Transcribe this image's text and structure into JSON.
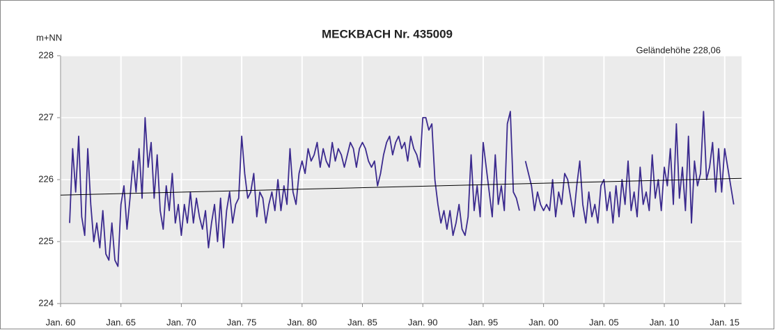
{
  "chart_data": {
    "type": "line",
    "title": "MECKBACH  Nr. 435009",
    "y_label": "m+NN",
    "annotation": "Geländehöhe 228,06",
    "annotation_color": "#3a9a3a",
    "background": "#ebebeb",
    "grid": true,
    "xlim": [
      1960,
      2016.4
    ],
    "ylim": [
      224,
      228
    ],
    "yticks": [
      224,
      225,
      226,
      227,
      228
    ],
    "xticks": [
      {
        "value": 1960,
        "label": "Jan. 60"
      },
      {
        "value": 1965,
        "label": "Jan. 65"
      },
      {
        "value": 1970,
        "label": "Jan. 70"
      },
      {
        "value": 1975,
        "label": "Jan. 75"
      },
      {
        "value": 1980,
        "label": "Jan. 80"
      },
      {
        "value": 1985,
        "label": "Jan. 85"
      },
      {
        "value": 1990,
        "label": "Jan. 90"
      },
      {
        "value": 1995,
        "label": "Jan. 95"
      },
      {
        "value": 2000,
        "label": "Jan. 00"
      },
      {
        "value": 2005,
        "label": "Jan. 05"
      },
      {
        "value": 2010,
        "label": "Jan. 10"
      },
      {
        "value": 2015,
        "label": "Jan. 15"
      }
    ],
    "x": [
      1960.75,
      1961,
      1961.25,
      1961.5,
      1961.75,
      1962,
      1962.25,
      1962.5,
      1962.75,
      1963,
      1963.25,
      1963.5,
      1963.75,
      1964,
      1964.25,
      1964.5,
      1964.75,
      1965,
      1965.25,
      1965.5,
      1965.75,
      1966,
      1966.25,
      1966.5,
      1966.75,
      1967,
      1967.25,
      1967.5,
      1967.75,
      1968,
      1968.25,
      1968.5,
      1968.75,
      1969,
      1969.25,
      1969.5,
      1969.75,
      1970,
      1970.25,
      1970.5,
      1970.75,
      1971,
      1971.25,
      1971.5,
      1971.75,
      1972,
      1972.25,
      1972.5,
      1972.75,
      1973,
      1973.25,
      1973.5,
      1973.75,
      1974,
      1974.25,
      1974.5,
      1974.75,
      1975,
      1975.25,
      1975.5,
      1975.75,
      1976,
      1976.25,
      1976.5,
      1976.75,
      1977,
      1977.25,
      1977.5,
      1977.75,
      1978,
      1978.25,
      1978.5,
      1978.75,
      1979,
      1979.25,
      1979.5,
      1979.75,
      1980,
      1980.25,
      1980.5,
      1980.75,
      1981,
      1981.25,
      1981.5,
      1981.75,
      1982,
      1982.25,
      1982.5,
      1982.75,
      1983,
      1983.25,
      1983.5,
      1983.75,
      1984,
      1984.25,
      1984.5,
      1984.75,
      1985,
      1985.25,
      1985.5,
      1985.75,
      1986,
      1986.25,
      1986.5,
      1986.75,
      1987,
      1987.25,
      1987.5,
      1987.75,
      1988,
      1988.25,
      1988.5,
      1988.75,
      1989,
      1989.25,
      1989.5,
      1989.75,
      1990,
      1990.25,
      1990.5,
      1990.75,
      1991,
      1991.25,
      1991.5,
      1991.75,
      1992,
      1992.25,
      1992.5,
      1992.75,
      1993,
      1993.25,
      1993.5,
      1993.75,
      1994,
      1994.25,
      1994.5,
      1994.75,
      1995,
      1995.25,
      1995.5,
      1995.75,
      1996,
      1996.25,
      1996.5,
      1996.75,
      1997,
      1997.25,
      1997.5,
      1997.75,
      1998,
      1998.25,
      1998.5,
      1998.75,
      1999,
      1999.25,
      1999.5,
      1999.75,
      2000,
      2000.25,
      2000.5,
      2000.75,
      2001,
      2001.25,
      2001.5,
      2001.75,
      2002,
      2002.25,
      2002.5,
      2002.75,
      2003,
      2003.25,
      2003.5,
      2003.75,
      2004,
      2004.25,
      2004.5,
      2004.75,
      2005,
      2005.25,
      2005.5,
      2005.75,
      2006,
      2006.25,
      2006.5,
      2006.75,
      2007,
      2007.25,
      2007.5,
      2007.75,
      2008,
      2008.25,
      2008.5,
      2008.75,
      2009,
      2009.25,
      2009.5,
      2009.75,
      2010,
      2010.25,
      2010.5,
      2010.75,
      2011,
      2011.25,
      2011.5,
      2011.75,
      2012,
      2012.25,
      2012.5,
      2012.75,
      2013,
      2013.25,
      2013.5,
      2013.75,
      2014,
      2014.25,
      2014.5,
      2014.75,
      2015,
      2015.25,
      2015.5,
      2015.75
    ],
    "series": [
      {
        "color": "#3b2a8e",
        "values": [
          225.3,
          226.5,
          225.8,
          226.7,
          225.4,
          225.1,
          226.5,
          225.6,
          225.0,
          225.3,
          224.9,
          225.5,
          224.8,
          224.7,
          225.3,
          224.7,
          224.6,
          225.6,
          225.9,
          225.2,
          225.7,
          226.3,
          225.8,
          226.5,
          225.7,
          227.0,
          226.2,
          226.6,
          225.7,
          226.4,
          225.5,
          225.2,
          225.9,
          225.5,
          226.1,
          225.3,
          225.6,
          225.1,
          225.6,
          225.3,
          225.8,
          225.3,
          225.7,
          225.4,
          225.2,
          225.5,
          224.9,
          225.3,
          225.6,
          225.0,
          225.7,
          224.9,
          225.5,
          225.8,
          225.3,
          225.6,
          225.7,
          226.7,
          226.1,
          225.7,
          225.8,
          226.1,
          225.4,
          225.8,
          225.7,
          225.3,
          225.6,
          225.8,
          225.5,
          226.0,
          225.5,
          225.9,
          225.6,
          226.5,
          225.8,
          225.6,
          226.1,
          226.3,
          226.1,
          226.5,
          226.3,
          226.4,
          226.6,
          226.2,
          226.5,
          226.3,
          226.2,
          226.6,
          226.3,
          226.5,
          226.4,
          226.2,
          226.4,
          226.6,
          226.5,
          226.2,
          226.5,
          226.6,
          226.5,
          226.3,
          226.2,
          226.3,
          225.9,
          226.1,
          226.4,
          226.6,
          226.7,
          226.4,
          226.6,
          226.7,
          226.5,
          226.6,
          226.3,
          226.7,
          226.5,
          226.4,
          226.2,
          227.0,
          227.0,
          226.8,
          226.9,
          226.0,
          225.6,
          225.3,
          225.5,
          225.2,
          225.5,
          225.1,
          225.3,
          225.6,
          225.2,
          225.1,
          225.4,
          226.4,
          225.5,
          225.9,
          225.4,
          226.6,
          226.2,
          225.8,
          225.4,
          226.4,
          225.6,
          225.9,
          225.5,
          226.9,
          227.1,
          225.8,
          225.7,
          225.5,
          null,
          226.3,
          226.1,
          225.9,
          225.5,
          225.8,
          225.6,
          225.5,
          225.6,
          225.5,
          226.0,
          225.4,
          225.8,
          225.6,
          226.1,
          226.0,
          225.7,
          225.4,
          225.9,
          226.3,
          225.6,
          225.3,
          225.8,
          225.4,
          225.6,
          225.3,
          225.9,
          226.0,
          225.5,
          225.8,
          225.3,
          225.9,
          225.4,
          226.0,
          225.6,
          226.3,
          225.5,
          225.8,
          225.4,
          226.2,
          225.6,
          225.8,
          225.5,
          226.4,
          225.7,
          226.0,
          225.5,
          226.2,
          225.9,
          226.5,
          225.6,
          226.9,
          225.7,
          226.2,
          225.5,
          226.7,
          225.3,
          226.3,
          225.9,
          226.1,
          227.1,
          226.0,
          226.2,
          226.6,
          225.8,
          226.5,
          225.8,
          226.5,
          226.2,
          225.9,
          225.6
        ]
      }
    ],
    "trend": {
      "color": "#000000",
      "x": [
        1960,
        2016.4
      ],
      "values": [
        225.75,
        226.02
      ]
    }
  }
}
